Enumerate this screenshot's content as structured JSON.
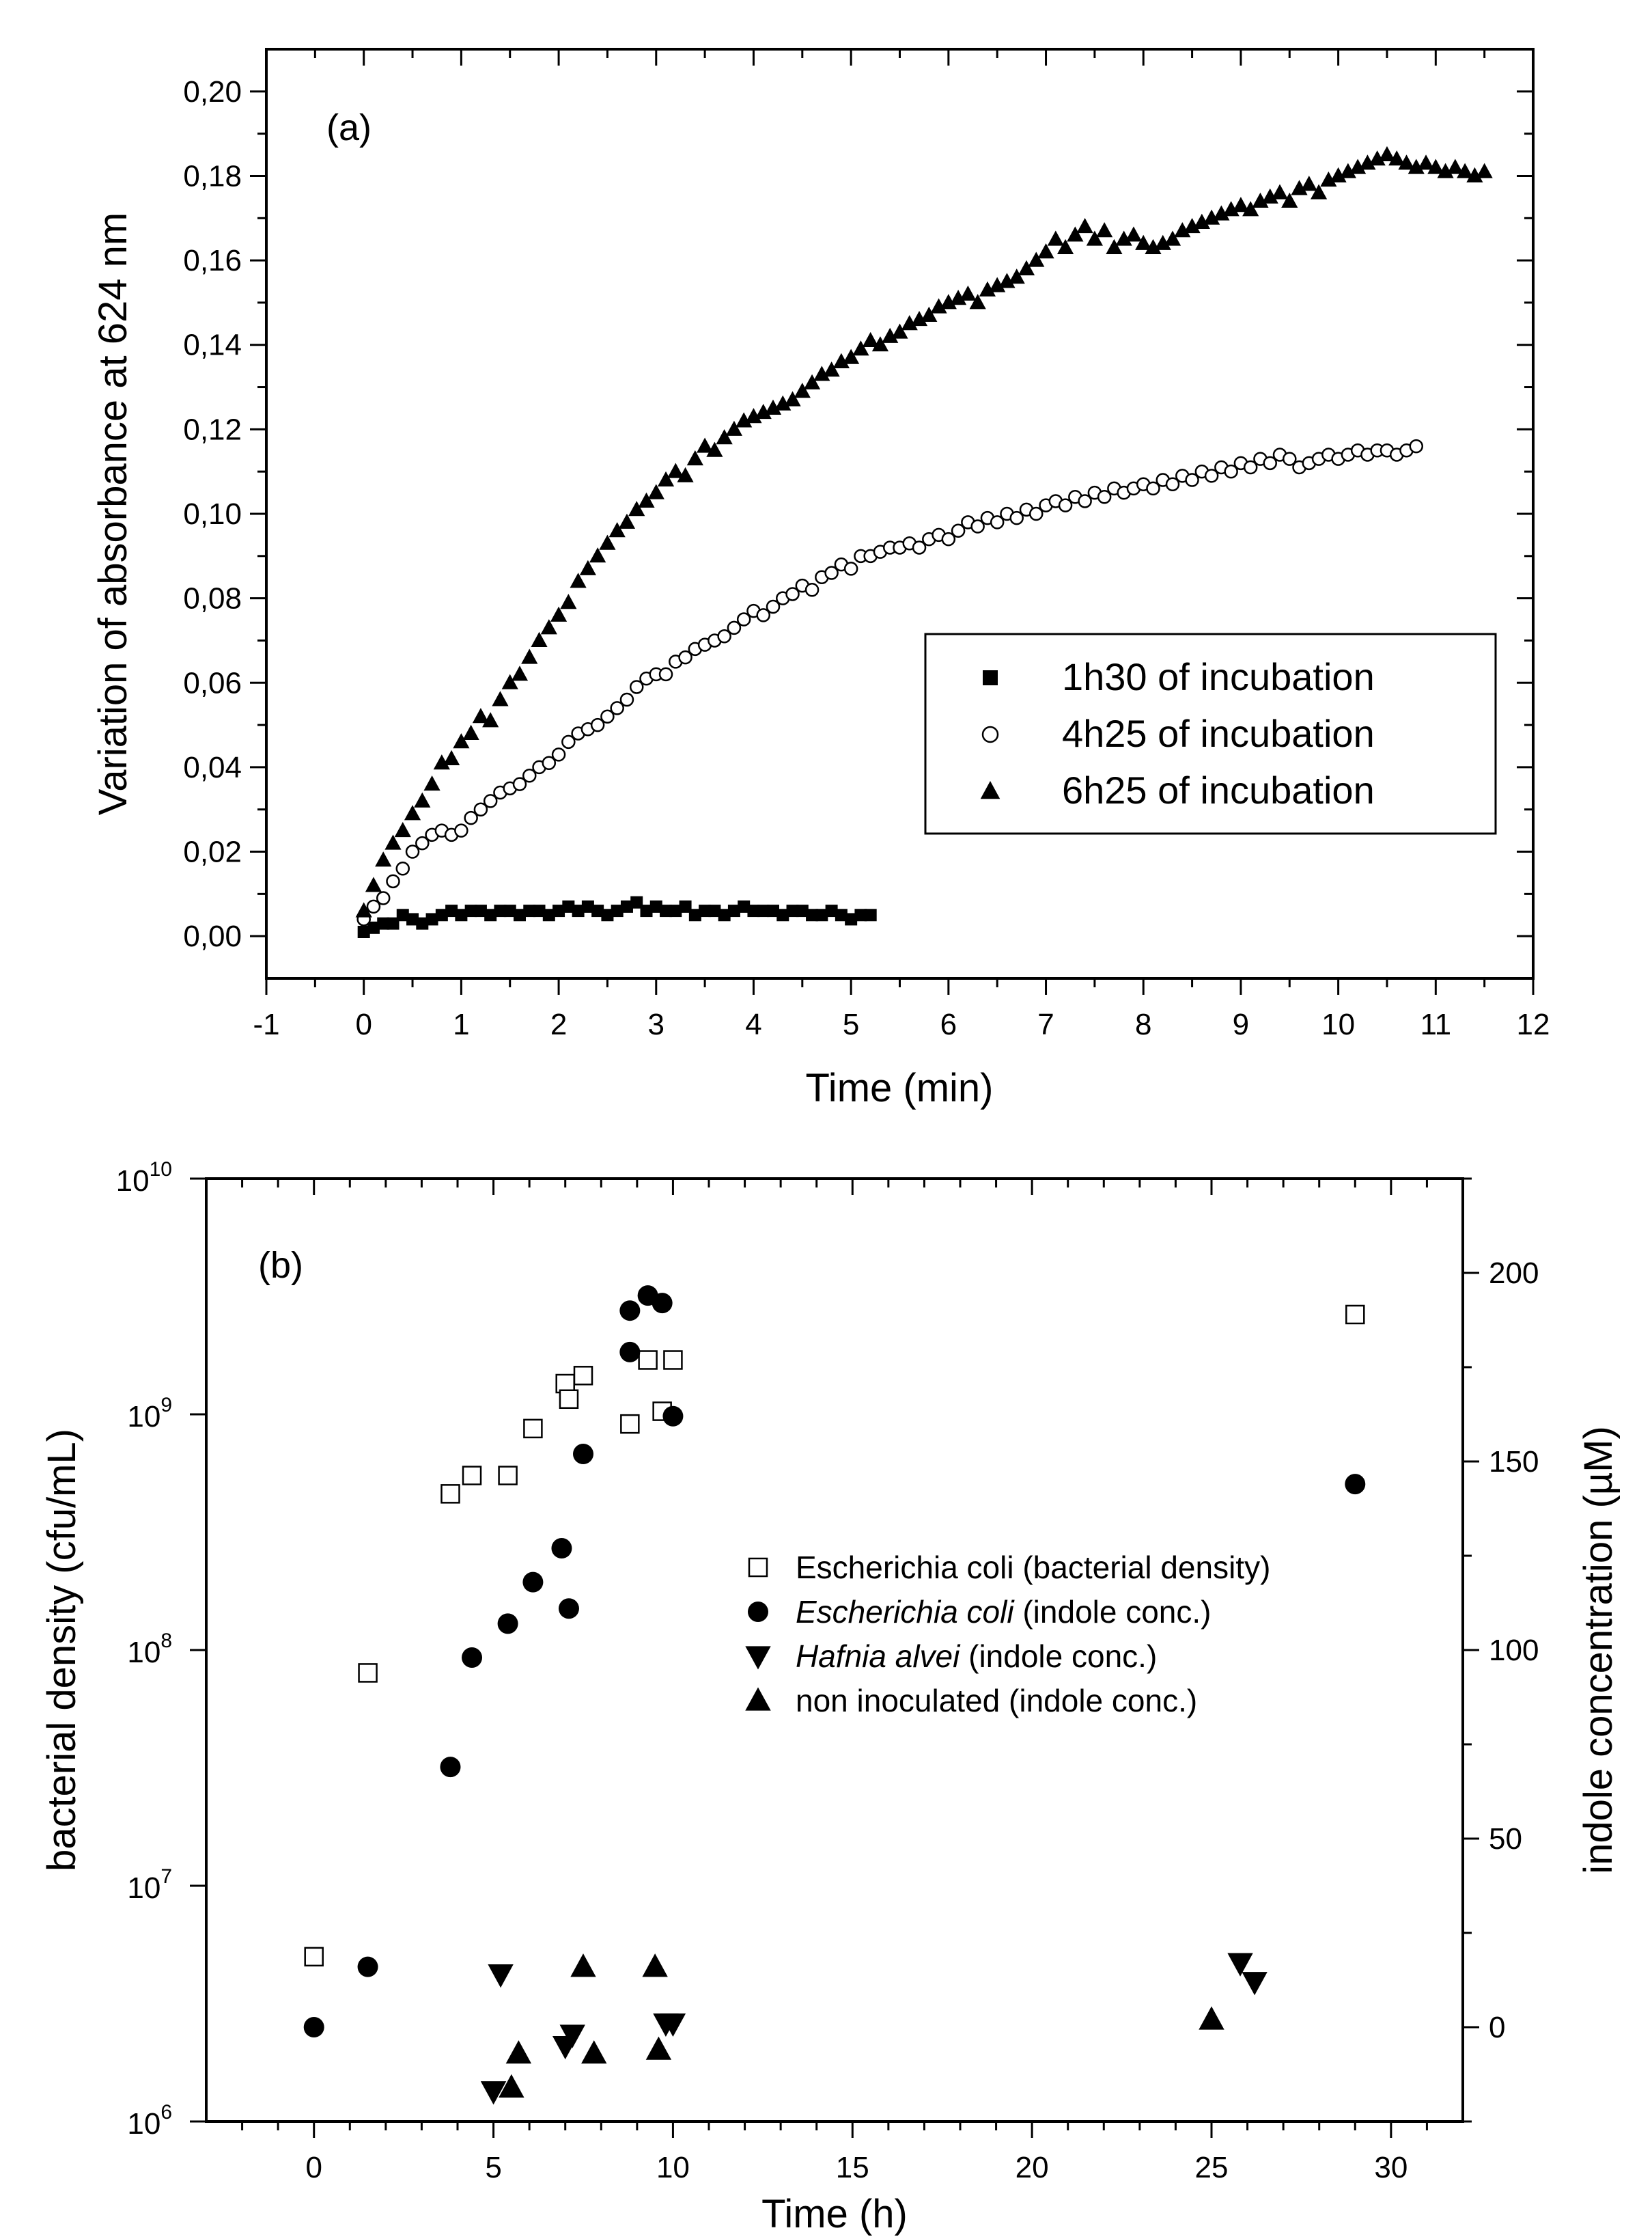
{
  "chart_data": [
    {
      "type": "scatter",
      "panel_label": "(a)",
      "xlabel": "Time (min)",
      "ylabel": "Variation of absorbance at 624 nm",
      "xlim": [
        -1,
        12
      ],
      "ylim": [
        -0.01,
        0.21
      ],
      "x_ticks": [
        -1,
        0,
        1,
        2,
        3,
        4,
        5,
        6,
        7,
        8,
        9,
        10,
        11,
        12
      ],
      "y_ticks": [
        0.0,
        0.02,
        0.04,
        0.06,
        0.08,
        0.1,
        0.12,
        0.14,
        0.16,
        0.18,
        0.2
      ],
      "x_tick_labels": [
        "-1",
        "0",
        "1",
        "2",
        "3",
        "4",
        "5",
        "6",
        "7",
        "8",
        "9",
        "10",
        "11",
        "12"
      ],
      "y_tick_labels": [
        "0,00",
        "0,02",
        "0,04",
        "0,06",
        "0,08",
        "0,10",
        "0,12",
        "0,14",
        "0,16",
        "0,18",
        "0,20"
      ],
      "grid": false,
      "legend_position": "center-right",
      "series": [
        {
          "name": "1h30 of incubation",
          "marker": "square-filled",
          "x": [
            0.0,
            0.1,
            0.2,
            0.3,
            0.4,
            0.5,
            0.6,
            0.7,
            0.8,
            0.9,
            1.0,
            1.1,
            1.2,
            1.3,
            1.4,
            1.5,
            1.6,
            1.7,
            1.8,
            1.9,
            2.0,
            2.1,
            2.2,
            2.3,
            2.4,
            2.5,
            2.6,
            2.7,
            2.8,
            2.9,
            3.0,
            3.1,
            3.2,
            3.3,
            3.4,
            3.5,
            3.6,
            3.7,
            3.8,
            3.9,
            4.0,
            4.1,
            4.2,
            4.3,
            4.4,
            4.5,
            4.6,
            4.7,
            4.8,
            4.9,
            5.0,
            5.1,
            5.2
          ],
          "y": [
            0.001,
            0.002,
            0.003,
            0.003,
            0.005,
            0.004,
            0.003,
            0.004,
            0.005,
            0.006,
            0.005,
            0.006,
            0.006,
            0.005,
            0.006,
            0.006,
            0.005,
            0.006,
            0.006,
            0.005,
            0.006,
            0.007,
            0.006,
            0.007,
            0.006,
            0.005,
            0.006,
            0.007,
            0.008,
            0.006,
            0.007,
            0.006,
            0.006,
            0.007,
            0.005,
            0.006,
            0.006,
            0.005,
            0.006,
            0.007,
            0.006,
            0.006,
            0.006,
            0.005,
            0.006,
            0.006,
            0.005,
            0.005,
            0.006,
            0.005,
            0.004,
            0.005,
            0.005
          ]
        },
        {
          "name": "4h25 of incubation",
          "marker": "circle-open",
          "x": [
            0.0,
            0.1,
            0.2,
            0.3,
            0.4,
            0.5,
            0.6,
            0.7,
            0.8,
            0.9,
            1.0,
            1.1,
            1.2,
            1.3,
            1.4,
            1.5,
            1.6,
            1.7,
            1.8,
            1.9,
            2.0,
            2.1,
            2.2,
            2.3,
            2.4,
            2.5,
            2.6,
            2.7,
            2.8,
            2.9,
            3.0,
            3.1,
            3.2,
            3.3,
            3.4,
            3.5,
            3.6,
            3.7,
            3.8,
            3.9,
            4.0,
            4.1,
            4.2,
            4.3,
            4.4,
            4.5,
            4.6,
            4.7,
            4.8,
            4.9,
            5.0,
            5.1,
            5.2,
            5.3,
            5.4,
            5.5,
            5.6,
            5.7,
            5.8,
            5.9,
            6.0,
            6.1,
            6.2,
            6.3,
            6.4,
            6.5,
            6.6,
            6.7,
            6.8,
            6.9,
            7.0,
            7.1,
            7.2,
            7.3,
            7.4,
            7.5,
            7.6,
            7.7,
            7.8,
            7.9,
            8.0,
            8.1,
            8.2,
            8.3,
            8.4,
            8.5,
            8.6,
            8.7,
            8.8,
            8.9,
            9.0,
            9.1,
            9.2,
            9.3,
            9.4,
            9.5,
            9.6,
            9.7,
            9.8,
            9.9,
            10.0,
            10.1,
            10.2,
            10.3,
            10.4,
            10.5,
            10.6,
            10.7,
            10.8
          ],
          "y": [
            0.004,
            0.007,
            0.009,
            0.013,
            0.016,
            0.02,
            0.022,
            0.024,
            0.025,
            0.024,
            0.025,
            0.028,
            0.03,
            0.032,
            0.034,
            0.035,
            0.036,
            0.038,
            0.04,
            0.041,
            0.043,
            0.046,
            0.048,
            0.049,
            0.05,
            0.052,
            0.054,
            0.056,
            0.059,
            0.061,
            0.062,
            0.062,
            0.065,
            0.066,
            0.068,
            0.069,
            0.07,
            0.071,
            0.073,
            0.075,
            0.077,
            0.076,
            0.078,
            0.08,
            0.081,
            0.083,
            0.082,
            0.085,
            0.086,
            0.088,
            0.087,
            0.09,
            0.09,
            0.091,
            0.092,
            0.092,
            0.093,
            0.092,
            0.094,
            0.095,
            0.094,
            0.096,
            0.098,
            0.097,
            0.099,
            0.098,
            0.1,
            0.099,
            0.101,
            0.1,
            0.102,
            0.103,
            0.102,
            0.104,
            0.103,
            0.105,
            0.104,
            0.106,
            0.105,
            0.106,
            0.107,
            0.106,
            0.108,
            0.107,
            0.109,
            0.108,
            0.11,
            0.109,
            0.111,
            0.11,
            0.112,
            0.111,
            0.113,
            0.112,
            0.114,
            0.113,
            0.111,
            0.112,
            0.113,
            0.114,
            0.113,
            0.114,
            0.115,
            0.114,
            0.115,
            0.115,
            0.114,
            0.115,
            0.116
          ]
        },
        {
          "name": "6h25 of incubation",
          "marker": "triangle-up-filled",
          "x": [
            0.0,
            0.1,
            0.2,
            0.3,
            0.4,
            0.5,
            0.6,
            0.7,
            0.8,
            0.9,
            1.0,
            1.1,
            1.2,
            1.3,
            1.4,
            1.5,
            1.6,
            1.7,
            1.8,
            1.9,
            2.0,
            2.1,
            2.2,
            2.3,
            2.4,
            2.5,
            2.6,
            2.7,
            2.8,
            2.9,
            3.0,
            3.1,
            3.2,
            3.3,
            3.4,
            3.5,
            3.6,
            3.7,
            3.8,
            3.9,
            4.0,
            4.1,
            4.2,
            4.3,
            4.4,
            4.5,
            4.6,
            4.7,
            4.8,
            4.9,
            5.0,
            5.1,
            5.2,
            5.3,
            5.4,
            5.5,
            5.6,
            5.7,
            5.8,
            5.9,
            6.0,
            6.1,
            6.2,
            6.3,
            6.4,
            6.5,
            6.6,
            6.7,
            6.8,
            6.9,
            7.0,
            7.1,
            7.2,
            7.3,
            7.4,
            7.5,
            7.6,
            7.7,
            7.8,
            7.9,
            8.0,
            8.1,
            8.2,
            8.3,
            8.4,
            8.5,
            8.6,
            8.7,
            8.8,
            8.9,
            9.0,
            9.1,
            9.2,
            9.3,
            9.4,
            9.5,
            9.6,
            9.7,
            9.8,
            9.9,
            10.0,
            10.1,
            10.2,
            10.3,
            10.4,
            10.5,
            10.6,
            10.7,
            10.8,
            10.9,
            11.0,
            11.1,
            11.2,
            11.3,
            11.4,
            11.5
          ],
          "y": [
            0.006,
            0.012,
            0.018,
            0.022,
            0.025,
            0.029,
            0.032,
            0.036,
            0.041,
            0.042,
            0.046,
            0.048,
            0.052,
            0.051,
            0.056,
            0.06,
            0.062,
            0.066,
            0.07,
            0.073,
            0.076,
            0.079,
            0.084,
            0.087,
            0.09,
            0.093,
            0.096,
            0.098,
            0.101,
            0.103,
            0.105,
            0.108,
            0.11,
            0.109,
            0.113,
            0.116,
            0.115,
            0.118,
            0.12,
            0.122,
            0.123,
            0.124,
            0.125,
            0.126,
            0.127,
            0.129,
            0.131,
            0.133,
            0.134,
            0.136,
            0.137,
            0.139,
            0.141,
            0.14,
            0.142,
            0.143,
            0.145,
            0.146,
            0.147,
            0.149,
            0.15,
            0.151,
            0.152,
            0.15,
            0.153,
            0.154,
            0.155,
            0.156,
            0.158,
            0.16,
            0.162,
            0.165,
            0.163,
            0.166,
            0.168,
            0.165,
            0.167,
            0.163,
            0.165,
            0.166,
            0.164,
            0.163,
            0.164,
            0.165,
            0.167,
            0.168,
            0.169,
            0.17,
            0.171,
            0.172,
            0.173,
            0.172,
            0.174,
            0.175,
            0.176,
            0.174,
            0.177,
            0.178,
            0.176,
            0.179,
            0.18,
            0.181,
            0.182,
            0.183,
            0.184,
            0.185,
            0.184,
            0.183,
            0.182,
            0.183,
            0.182,
            0.181,
            0.182,
            0.181,
            0.18,
            0.181
          ]
        }
      ]
    },
    {
      "type": "scatter",
      "panel_label": "(b)",
      "xlabel": "Time (h)",
      "ylabel": "bacterial density (cfu/mL)",
      "y2label": "indole concentration (µM)",
      "xlim": [
        -3,
        32
      ],
      "ylim": [
        1000000,
        10000000000
      ],
      "y_scale": "log",
      "y2lim": [
        -25,
        225
      ],
      "x_ticks": [
        0,
        5,
        10,
        15,
        20,
        25,
        30
      ],
      "x_tick_labels": [
        "0",
        "5",
        "10",
        "15",
        "20",
        "25",
        "30"
      ],
      "y_ticks": [
        1000000,
        10000000,
        100000000,
        1000000000,
        10000000000
      ],
      "y_tick_labels": [
        {
          "base": "10",
          "exp": "6"
        },
        {
          "base": "10",
          "exp": "7"
        },
        {
          "base": "10",
          "exp": "8"
        },
        {
          "base": "10",
          "exp": "9"
        },
        {
          "base": "10",
          "exp": "10"
        }
      ],
      "y2_ticks": [
        0,
        50,
        100,
        150,
        200
      ],
      "y2_tick_labels": [
        "0",
        "50",
        "100",
        "150",
        "200"
      ],
      "grid": false,
      "legend_position": "center",
      "series": [
        {
          "name": "Escherichia coli (bacterial density)",
          "axis": "left",
          "marker": "square-open",
          "x": [
            0,
            1.5,
            3.8,
            4.4,
            5.4,
            6.1,
            7.0,
            7.1,
            7.5,
            8.8,
            9.3,
            9.7,
            10.0,
            29.0
          ],
          "y": [
            5000000,
            80000000,
            460000000,
            550000000,
            550000000,
            870000000,
            1350000000,
            1160000000,
            1460000000,
            910000000,
            1700000000,
            1030000000,
            1700000000,
            2650000000
          ]
        },
        {
          "name": "Escherichia coli (indole conc.)",
          "name_italic": "Escherichia coli",
          "name_rest": " (indole conc.)",
          "axis": "right",
          "marker": "circle-filled",
          "x": [
            0,
            1.5,
            3.8,
            4.4,
            5.4,
            6.1,
            6.9,
            7.1,
            7.5,
            8.8,
            8.8,
            9.3,
            9.7,
            10.0,
            29.0
          ],
          "y": [
            0,
            16,
            69,
            98,
            107,
            118,
            127,
            111,
            152,
            179,
            190,
            194,
            192,
            162,
            144
          ]
        },
        {
          "name": "Hafnia alvei (indole conc.)",
          "name_italic": "Hafnia alvei",
          "name_rest": " (indole conc.)",
          "axis": "right",
          "marker": "triangle-down-filled",
          "x": [
            5.0,
            5.2,
            7.0,
            7.2,
            9.8,
            10.0,
            25.8,
            26.2
          ],
          "y": [
            -17,
            14,
            -5,
            -2,
            1,
            1,
            17,
            12
          ]
        },
        {
          "name": "non inoculated (indole conc.)",
          "axis": "right",
          "marker": "triangle-up-filled",
          "x": [
            5.5,
            5.7,
            7.5,
            7.8,
            9.5,
            9.6,
            25.0
          ],
          "y": [
            -16,
            -7,
            16,
            -7,
            16,
            -6,
            2
          ]
        }
      ]
    }
  ]
}
